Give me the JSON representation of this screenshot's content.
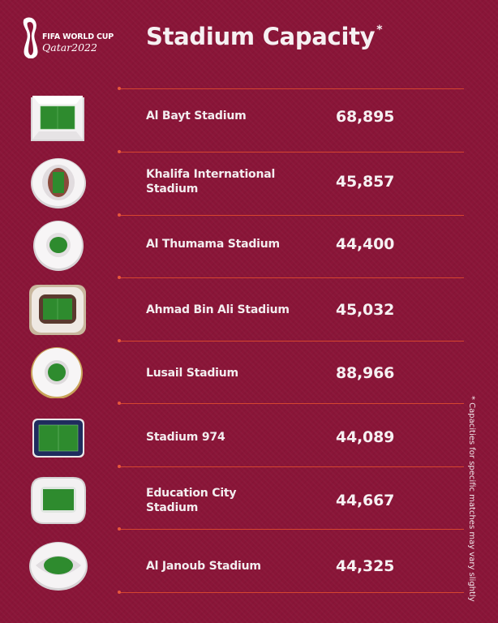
{
  "logo": {
    "line1": "FIFA WORLD CUP",
    "line2": "Qatar2022"
  },
  "header": {
    "title": "Stadium Capacity",
    "asterisk": "*"
  },
  "footnote": "* Capacities for specific matches may vary slightly",
  "colors": {
    "background": "#8a1538",
    "divider": "#d6452f",
    "pitch": "#2e8b2e",
    "text": "#f3edef"
  },
  "stadiums": [
    {
      "name": "Al Bayt Stadium",
      "capacity": "68,895",
      "icon": "al-bayt-stadium-icon"
    },
    {
      "name": "Khalifa International Stadium",
      "capacity": "45,857",
      "icon": "khalifa-international-stadium-icon"
    },
    {
      "name": "Al Thumama Stadium",
      "capacity": "44,400",
      "icon": "al-thumama-stadium-icon"
    },
    {
      "name": "Ahmad Bin Ali Stadium",
      "capacity": "45,032",
      "icon": "ahmad-bin-ali-stadium-icon"
    },
    {
      "name": "Lusail Stadium",
      "capacity": "88,966",
      "icon": "lusail-stadium-icon"
    },
    {
      "name": "Stadium 974",
      "capacity": "44,089",
      "icon": "stadium-974-icon"
    },
    {
      "name": "Education City Stadium",
      "capacity": "44,667",
      "icon": "education-city-stadium-icon"
    },
    {
      "name": "Al Janoub Stadium",
      "capacity": "44,325",
      "icon": "al-janoub-stadium-icon"
    }
  ]
}
